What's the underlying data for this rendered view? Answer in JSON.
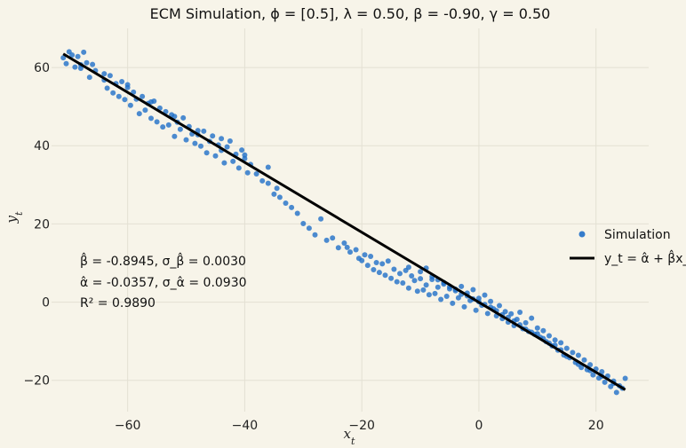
{
  "colors": {
    "background": "#f7f4e9",
    "grid": "#e3e0d3",
    "points": "#1f6fc8",
    "fit_line": "#000000"
  },
  "chart_data": {
    "type": "scatter",
    "title": "ECM Simulation, ϕ = [0.5], λ = 0.50, β = -0.90, γ = 0.50",
    "xlabel": "x_t",
    "ylabel": "y_t",
    "xlim": [
      -73,
      29
    ],
    "ylim": [
      -28,
      70
    ],
    "xticks": [
      -60,
      -40,
      -20,
      0,
      20
    ],
    "yticks": [
      -20,
      0,
      20,
      40,
      60
    ],
    "grid": true,
    "legend_position": "right",
    "fit": {
      "alpha": -0.0357,
      "beta": -0.8945,
      "x_range": [
        -71,
        25
      ]
    },
    "stats": {
      "beta_line": "β̂ = -0.8945, σ_β̂ = 0.0030",
      "alpha_line": "α̂ = -0.0357, σ_α̂ = 0.0930",
      "r2_line": "R² = 0.9890"
    },
    "series": [
      {
        "name": "Simulation",
        "kind": "scatter",
        "x": [
          -71.0,
          -70.5,
          -70.0,
          -69.5,
          -69.0,
          -68.5,
          -68.0,
          -67.5,
          -67.0,
          -66.5,
          -66.0,
          -65.5,
          -64.0,
          -63.5,
          -63.0,
          -62.5,
          -62.0,
          -61.5,
          -61.0,
          -60.5,
          -60.0,
          -59.5,
          -59.0,
          -58.5,
          -58.0,
          -57.5,
          -57.0,
          -56.5,
          -56.0,
          -55.5,
          -55.0,
          -54.5,
          -54.0,
          -53.5,
          -53.0,
          -52.5,
          -52.0,
          -51.5,
          -51.0,
          -50.5,
          -50.0,
          -49.5,
          -49.0,
          -48.5,
          -48.0,
          -47.5,
          -47.0,
          -46.5,
          -46.0,
          -45.5,
          -45.0,
          -44.5,
          -44.0,
          -43.5,
          -43.0,
          -42.5,
          -42.0,
          -41.5,
          -41.0,
          -40.5,
          -40.0,
          -39.5,
          -39.0,
          -38.0,
          -37.0,
          -36.0,
          -35.0,
          -34.5,
          -34.0,
          -33.0,
          -32.0,
          -31.0,
          -30.0,
          -29.0,
          -28.0,
          -27.0,
          -26.0,
          -25.0,
          -24.0,
          -23.0,
          -22.5,
          -22.0,
          -21.0,
          -20.5,
          -20.0,
          -19.5,
          -19.0,
          -18.5,
          -18.0,
          -17.5,
          -17.0,
          -16.5,
          -16.0,
          -15.5,
          -15.0,
          -14.5,
          -14.0,
          -13.5,
          -13.0,
          -12.5,
          -12.0,
          -11.5,
          -11.0,
          -10.5,
          -10.0,
          -9.5,
          -9.0,
          -8.5,
          -8.0,
          -7.5,
          -7.0,
          -6.5,
          -6.0,
          -5.5,
          -5.0,
          -4.5,
          -4.0,
          -3.5,
          -3.0,
          -2.5,
          -2.0,
          -1.5,
          -1.0,
          -0.5,
          0.0,
          0.5,
          1.0,
          1.5,
          2.0,
          2.5,
          3.0,
          3.5,
          4.0,
          4.5,
          5.0,
          5.5,
          6.0,
          6.5,
          7.0,
          7.5,
          8.0,
          8.5,
          9.0,
          9.5,
          10.0,
          10.5,
          11.0,
          11.5,
          12.0,
          12.5,
          13.0,
          13.5,
          14.0,
          14.5,
          15.0,
          15.5,
          16.0,
          16.5,
          17.0,
          17.5,
          18.0,
          18.5,
          19.0,
          19.5,
          20.0,
          20.5,
          21.0,
          21.5,
          22.0,
          22.5,
          23.0,
          23.5,
          24.0,
          24.5,
          25.0,
          -68.0,
          -64.0,
          -60.0,
          -56.0,
          -52.0,
          -48.0,
          -44.0,
          -40.0,
          -36.0,
          -12.0,
          -10.0,
          -8.0,
          -6.0,
          -4.0,
          -2.0,
          0.0,
          2.0,
          4.0,
          6.0,
          8.0,
          10.0,
          12.0,
          14.0,
          -3.0,
          -1.0,
          1.0,
          3.0,
          5.0,
          7.0,
          9.0,
          11.0,
          13.0,
          -5.0,
          -7.0,
          -9.0,
          15.0,
          17.0,
          19.0,
          21.0,
          23.0
        ],
        "y": [
          62.5,
          61.0,
          64.0,
          63.2,
          60.1,
          62.8,
          59.8,
          63.9,
          61.2,
          57.5,
          60.8,
          59.2,
          56.8,
          54.7,
          57.9,
          53.5,
          55.9,
          52.6,
          56.4,
          51.8,
          54.9,
          50.3,
          53.7,
          51.9,
          48.2,
          52.6,
          49.1,
          50.8,
          47.0,
          51.4,
          46.1,
          49.6,
          44.8,
          48.7,
          45.3,
          47.9,
          42.4,
          46.0,
          44.2,
          47.1,
          41.5,
          44.9,
          43.0,
          40.6,
          42.8,
          39.9,
          43.7,
          38.2,
          41.1,
          42.5,
          37.4,
          40.2,
          38.8,
          35.6,
          39.7,
          41.2,
          36.0,
          37.8,
          34.3,
          38.9,
          36.7,
          33.1,
          35.2,
          32.8,
          31.0,
          30.4,
          27.6,
          29.1,
          26.8,
          25.3,
          24.2,
          22.7,
          20.1,
          18.9,
          17.2,
          21.3,
          15.8,
          16.4,
          13.9,
          15.1,
          14.0,
          12.8,
          13.4,
          11.2,
          10.6,
          12.1,
          9.4,
          11.7,
          8.3,
          10.1,
          7.6,
          9.8,
          6.9,
          10.5,
          6.1,
          8.4,
          5.2,
          7.3,
          4.9,
          8.1,
          3.6,
          6.7,
          5.5,
          2.8,
          6.0,
          3.1,
          4.4,
          1.9,
          5.8,
          2.2,
          3.8,
          0.7,
          4.6,
          1.5,
          3.4,
          -0.3,
          2.9,
          1.1,
          4.0,
          -1.2,
          2.3,
          0.4,
          3.2,
          -2.1,
          1.0,
          -0.8,
          1.8,
          -2.9,
          0.2,
          -1.7,
          -3.5,
          -0.9,
          -4.2,
          -2.4,
          -5.1,
          -3.0,
          -6.0,
          -4.4,
          -2.6,
          -6.8,
          -5.3,
          -7.5,
          -4.1,
          -8.2,
          -6.6,
          -9.0,
          -7.3,
          -10.1,
          -8.6,
          -11.2,
          -9.7,
          -12.3,
          -10.4,
          -13.5,
          -11.8,
          -14.2,
          -12.9,
          -15.4,
          -13.6,
          -16.7,
          -14.8,
          -17.3,
          -16.0,
          -18.6,
          -17.1,
          -19.4,
          -17.8,
          -20.5,
          -18.9,
          -21.6,
          -20.2,
          -23.1,
          -21.4,
          -22.0,
          -19.5,
          60.7,
          58.4,
          55.6,
          51.2,
          47.5,
          43.9,
          41.8,
          37.6,
          34.5,
          8.9,
          7.8,
          6.5,
          5.0,
          3.3,
          1.6,
          0.1,
          -1.3,
          -3.2,
          -4.8,
          -6.9,
          -8.1,
          -10.5,
          -12.2,
          2.0,
          0.8,
          -0.6,
          -2.2,
          -3.9,
          -5.8,
          -7.7,
          -9.3,
          -11.0,
          3.9,
          5.7,
          8.7,
          -13.9,
          -15.9,
          -17.5,
          -19.0,
          -20.8
        ]
      },
      {
        "name": "y_t = α̂ + β̂x_t",
        "kind": "line"
      }
    ]
  }
}
